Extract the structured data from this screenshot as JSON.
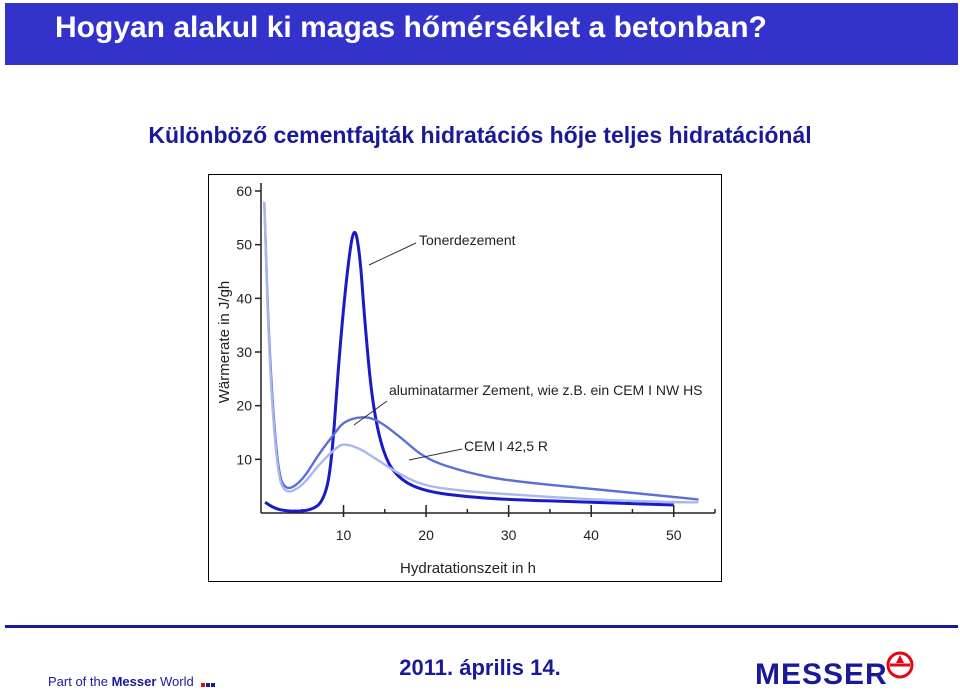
{
  "header": {
    "title": "Hogyan alakul ki magas hőmérséklet a betonban?",
    "subtitle": "Különböző cementfajták hidratációs hője teljes hidratációnál"
  },
  "chart_data": {
    "type": "line",
    "xlabel": "Hydratationszeit in h",
    "ylabel": "Wärmerate in J/gh",
    "xlim": [
      0,
      55
    ],
    "ylim": [
      0,
      60
    ],
    "x_ticks": [
      10,
      20,
      30,
      40,
      50
    ],
    "y_ticks": [
      10,
      20,
      30,
      40,
      50,
      60
    ],
    "grid": false,
    "series": [
      {
        "name": "Tonerdezement",
        "color": "#1a1ac8",
        "x": [
          0.5,
          1.5,
          2.5,
          4,
          6,
          7.5,
          8.5,
          9.5,
          10.5,
          11.3,
          12,
          12.5,
          13.5,
          15,
          17,
          20,
          25,
          30,
          40,
          50
        ],
        "y": [
          2,
          1,
          0.5,
          0.3,
          0.5,
          2,
          8,
          30,
          46,
          54,
          48,
          37,
          20,
          10,
          6,
          4,
          3,
          2.5,
          2,
          1.5
        ]
      },
      {
        "name": "aluminatarmer Zement, wie z.B. ein CEM I NW HS",
        "color": "#5a6fd8",
        "x": [
          0.4,
          1,
          2,
          3,
          5,
          7,
          9,
          10,
          12,
          14,
          17,
          20,
          25,
          30,
          40,
          50,
          53
        ],
        "y": [
          58,
          30,
          8,
          4,
          6,
          11,
          15,
          17,
          18,
          17.5,
          14,
          10,
          7.5,
          6,
          4.5,
          3,
          2.5
        ]
      },
      {
        "name": "CEM I 42,5 R",
        "color": "#a8b8ea",
        "x": [
          0.4,
          1,
          2,
          3,
          5,
          7,
          9,
          10,
          12,
          14,
          17,
          20,
          25,
          30,
          40,
          50,
          53
        ],
        "y": [
          58,
          28,
          7,
          3.5,
          5,
          9,
          12,
          13,
          12,
          10,
          7,
          5,
          4,
          3.5,
          2.5,
          2,
          2
        ]
      }
    ],
    "annotations": [
      "Tonerdezement",
      "aluminatarmer Zement, wie z.B. ein CEM I NW HS",
      "CEM I 42,5 R"
    ]
  },
  "footer": {
    "left_text_prefix": "Part of the ",
    "left_text_bold": "Messer",
    "left_text_suffix": " World",
    "date": "2011. április 14.",
    "logo_text": "MESSER",
    "dot_colors": [
      "#e30613",
      "#1a1a99",
      "#1a1a99"
    ]
  },
  "colors": {
    "title_bar": "#3333cc",
    "subtitle": "#1a1a99",
    "footer": "#1a1a99"
  }
}
